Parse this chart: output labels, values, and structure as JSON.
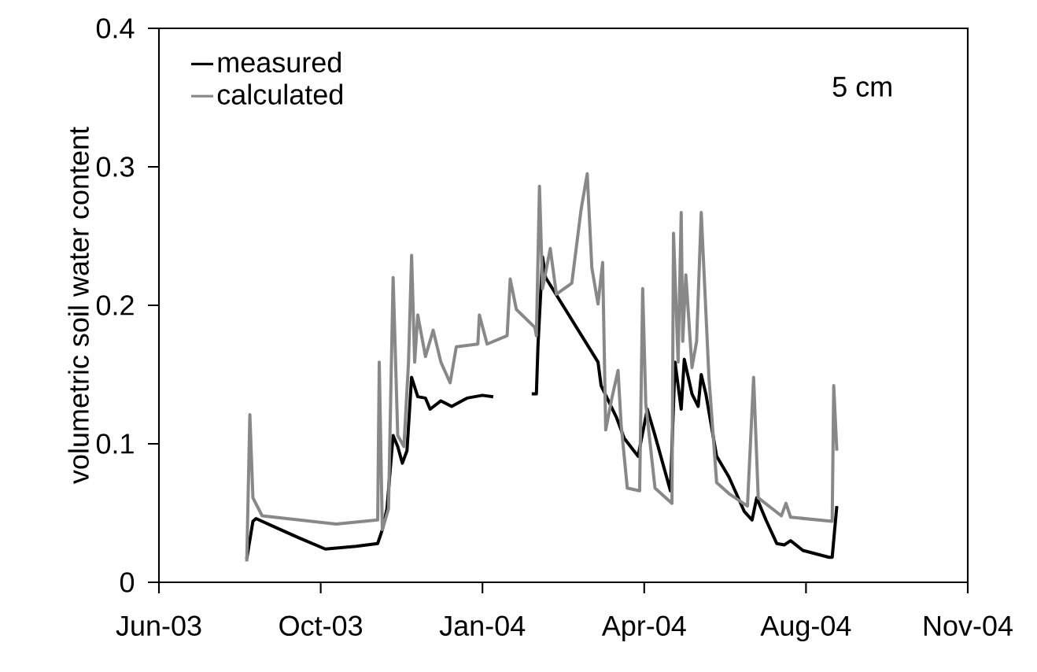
{
  "chart_data": {
    "type": "line",
    "ylabel": "volumetric soil water content",
    "annotations": [
      "5 cm"
    ],
    "legend": "top left",
    "xlim": [
      "2003-06-20",
      "2004-11-26"
    ],
    "xticks": [
      {
        "value": "2003-06-20",
        "label": "Jun-03"
      },
      {
        "value": "2003-10-03",
        "label": "Oct-03"
      },
      {
        "value": "2004-01-16",
        "label": "Jan-04"
      },
      {
        "value": "2004-04-30",
        "label": "Apr-04"
      },
      {
        "value": "2004-08-13",
        "label": "Aug-04"
      },
      {
        "value": "2004-11-26",
        "label": "Nov-04"
      }
    ],
    "ylim": [
      0,
      0.4
    ],
    "yticks": [
      0,
      0.1,
      0.2,
      0.3,
      0.4
    ],
    "series": [
      {
        "name": "measured",
        "color": "#000000",
        "x": [
          "2003-08-16",
          "2003-08-20",
          "2003-08-22",
          "2003-09-05",
          "2003-09-19",
          "2003-10-06",
          "2003-10-26",
          "2003-11-09",
          "2003-11-12",
          "2003-11-15",
          "2003-11-19",
          "2003-11-22",
          "2003-11-25",
          "2003-11-28",
          "2003-12-01",
          "2003-12-05",
          "2003-12-10",
          "2003-12-13",
          "2003-12-20",
          "2003-12-27",
          "2004-01-06",
          "2004-01-16",
          "2004-01-23",
          "2004-02-05",
          "2004-02-17",
          "2004-02-20",
          "2004-02-21",
          "2004-02-24",
          "2004-02-26",
          "2004-03-31",
          "2004-04-02",
          "2004-04-12",
          "2004-04-17",
          "2004-04-26",
          "2004-05-02",
          "2004-05-07",
          "2004-05-17",
          "2004-05-20",
          "2004-05-24",
          "2004-05-26",
          "2004-05-31",
          "2004-06-04",
          "2004-06-06",
          "2004-06-09",
          "2004-06-16",
          "2004-06-24",
          "2004-07-04",
          "2004-07-09",
          "2004-07-12",
          "2004-07-18",
          "2004-07-25",
          "2004-07-30",
          "2004-08-03",
          "2004-08-11",
          "2004-08-28",
          "2004-08-30",
          "2004-09-02"
        ],
        "values": [
          0.017,
          0.044,
          0.046,
          0.039,
          0.032,
          0.024,
          0.026,
          0.028,
          0.038,
          0.053,
          0.106,
          0.098,
          0.086,
          0.095,
          0.148,
          0.134,
          0.133,
          0.125,
          0.131,
          0.127,
          0.133,
          0.135,
          0.134,
          null,
          0.136,
          0.136,
          0.17,
          0.235,
          0.22,
          0.159,
          0.142,
          0.119,
          0.104,
          0.091,
          0.125,
          0.106,
          0.066,
          0.159,
          0.125,
          0.161,
          0.136,
          0.127,
          0.15,
          0.136,
          0.091,
          0.076,
          0.051,
          0.045,
          0.061,
          0.045,
          0.028,
          0.027,
          0.03,
          0.023,
          0.018,
          0.018,
          0.055
        ]
      },
      {
        "name": "calculated",
        "color": "#888888",
        "x": [
          "2003-08-16",
          "2003-08-18",
          "2003-08-20",
          "2003-08-26",
          "2003-09-19",
          "2003-10-13",
          "2003-11-09",
          "2003-11-10",
          "2003-11-12",
          "2003-11-16",
          "2003-11-19",
          "2003-11-22",
          "2003-11-26",
          "2003-11-29",
          "2003-12-01",
          "2003-12-03",
          "2003-12-05",
          "2003-12-10",
          "2003-12-15",
          "2003-12-20",
          "2003-12-26",
          "2003-12-30",
          "2004-01-13",
          "2004-01-14",
          "2004-01-19",
          "2004-02-01",
          "2004-02-03",
          "2004-02-07",
          "2004-02-19",
          "2004-02-20",
          "2004-02-22",
          "2004-02-24",
          "2004-02-29",
          "2004-03-04",
          "2004-03-14",
          "2004-03-20",
          "2004-03-24",
          "2004-03-27",
          "2004-03-31",
          "2004-04-03",
          "2004-04-05",
          "2004-04-09",
          "2004-04-13",
          "2004-04-15",
          "2004-04-19",
          "2004-04-27",
          "2004-04-29",
          "2004-05-01",
          "2004-05-07",
          "2004-05-18",
          "2004-05-19",
          "2004-05-22",
          "2004-05-24",
          "2004-05-25",
          "2004-05-27",
          "2004-05-31",
          "2004-06-03",
          "2004-06-06",
          "2004-06-11",
          "2004-06-16",
          "2004-06-24",
          "2004-07-06",
          "2004-07-10",
          "2004-07-13",
          "2004-07-28",
          "2004-07-31",
          "2004-08-03",
          "2004-08-30",
          "2004-08-31",
          "2004-09-02"
        ],
        "values": [
          0.015,
          0.121,
          0.061,
          0.048,
          0.045,
          0.042,
          0.045,
          0.159,
          0.038,
          0.053,
          0.22,
          0.106,
          0.098,
          0.159,
          0.236,
          0.159,
          0.193,
          0.163,
          0.182,
          0.159,
          0.144,
          0.17,
          0.172,
          0.193,
          0.172,
          0.178,
          0.219,
          0.197,
          0.184,
          0.178,
          0.286,
          0.212,
          0.241,
          0.208,
          0.216,
          0.269,
          0.295,
          0.227,
          0.201,
          0.231,
          0.11,
          0.133,
          0.153,
          0.114,
          0.068,
          0.066,
          0.212,
          0.129,
          0.068,
          0.057,
          0.252,
          0.159,
          0.267,
          0.174,
          0.222,
          0.155,
          0.174,
          0.267,
          0.148,
          0.072,
          0.064,
          0.055,
          0.148,
          0.061,
          0.048,
          0.057,
          0.047,
          0.044,
          0.142,
          0.095
        ]
      }
    ]
  }
}
